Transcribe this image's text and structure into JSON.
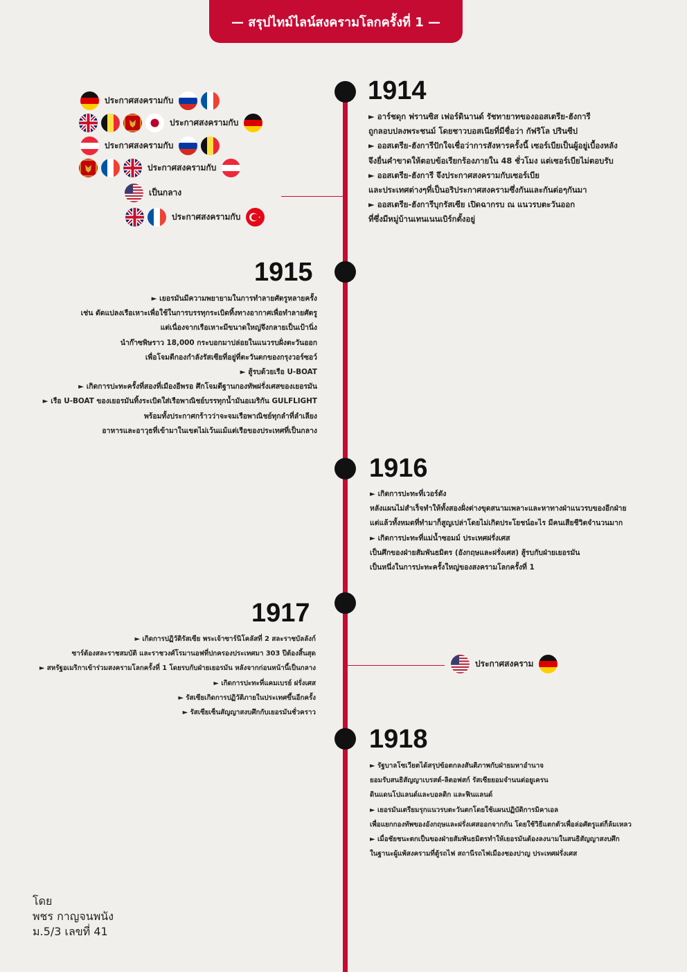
{
  "header": {
    "title": "— สรุปไทม์ไลน์สงครามโลกครั้งที่ 1 —"
  },
  "years": {
    "y1914": {
      "label": "1914",
      "lines": [
        "► อาร์ชดุก ฟรานซิส เฟอร์ดินานด์ รัชทายาทของออสเตรีย-ฮังการี",
        "ถูกลอบปลงพระชนม์ โดยชาวบอสเนียที่มีชื่อว่า กัฟริโล ปรินซีป",
        "► ออสเตรีย-ฮังการีปักใจเชื่อว่าการสังหารครั้งนี้ เซอร์เบียเป็นผู้อยู่เบื้องหลัง",
        "จึงยื่นคำขาดให้ตอบข้อเรียกร้องภายใน 48 ชั่วโมง แต่เซอร์เบียไม่ตอบรับ",
        "► ออสเตรีย-ฮังการี จึงประกาศสงครามกับเซอร์เบีย",
        "และประเทศต่างๆที่เป็นอริประกาศสงครามซึ่งกันและกันต่อๆกันมา",
        "► ออสเตรีย-ฮังการีบุกรัสเซีย เปิดฉากรบ ณ แนวรบตะวันออก",
        "ที่ซึ่งมีหมู่บ้านเทนเนนเบิร์กตั้งอยู่"
      ]
    },
    "y1915": {
      "label": "1915",
      "lines": [
        "► เยอรมันมีความพยายามในการทำลายศัตรูหลายครั้ง",
        "เช่น ดัดแปลงเรือเหาะเพื่อใช้ในการบรรทุกระเบิดทิ้งทางอากาศเพื่อทำลายศัตรู",
        "แต่เนื่องจากเรือเหาะมีขนาดใหญ่จึงกลายเป็นเป้านิ่ง",
        "นำก๊าซพิษราว 18,000 กระบอกมาปล่อยในแนวรบฝั่งตะวันออก",
        "เพื่อโจมตีกองกำลังรัสเซียที่อยู่ที่ตะวันตกของกรุงวอร์ซอว์",
        "► สู้รบด้วยเรือ U-BOAT",
        "► เกิดการปะทะครั้งที่สองที่เมืองอีพรอ ศึกโจมตีฐานกองทัพฝรั่งเศสของเยอรมัน",
        "► เรือ U-BOAT ของเยอรมันทิ้งระเบิดใส่เรือพาณิชย์บรรทุกน้ำมันอเมริกัน GULFLIGHT",
        "พร้อมทั้งประกาศกร้าวว่าจะจมเรือพาณิชย์ทุกลำที่ลำเลียง",
        "อาหารและอาวุธที่เข้ามาในเขตไม่เว้นแม้แต่เรือของประเทศที่เป็นกลาง"
      ]
    },
    "y1916": {
      "label": "1916",
      "lines": [
        "► เกิดการปะทะที่เวอร์ดัง",
        "หลังแผนไม่สำเร็จทำให้ทั้งสองฝั่งต่างขุดสนามเพลาะและหาทางฝ่าแนวรบของอีกฝ่าย",
        "แต่แล้วทั้งหมดที่ทำมาก็สูญเปล่าโดยไม่เกิดประโยชน์อะไร มีคนเสียชีวิตจำนวนมาก",
        "► เกิดการปะทะที่แม่น้ำซอมม์ ประเทศฝรั่งเศส",
        "เป็นศึกของฝ่ายสัมพันธมิตร (อังกฤษและฝรั่งเศส) สู้รบกับฝ่ายเยอรมัน",
        "เป็นหนึ่งในการปะทะครั้งใหญ่ของสงครามโลกครั้งที่ 1"
      ]
    },
    "y1917": {
      "label": "1917",
      "lines": [
        "► เกิดการปฏิวัติรัสเซีย พระเจ้าซาร์นิโคลัสที่ 2 สละราชบัลลังก์",
        "ซาร์ต้องสละราชสมบัติ และราชวงศ์โรมานอฟที่ปกครองประเทศมา 303 ปีต้องสิ้นสุด",
        "► สหรัฐอเมริกาเข้าร่วมสงครามโลกครั้งที่ 1 โดยรบกับฝ่ายเยอรมัน หลังจากก่อนหน้านี้เป็นกลาง",
        "► เกิดการปะทะที่แคมเบรย์ ฝรั่งเศส",
        "► รัสเซียเกิดการปฏิวัติภายในประเทศขึ้นอีกครั้ง",
        "► รัสเซียเซ็นสัญญาสงบศึกกับเยอรมันชั่วคราว"
      ]
    },
    "y1918": {
      "label": "1918",
      "lines": [
        "► รัฐบาลโซเวียตได้สรุปข้อตกลงสันติภาพกับฝ่ายมหาอำนาจ",
        "ยอมรับสนธิสัญญาเบรสต์-ลิตอฟสก์ รัสเซียยอมจำนนต่อยูเครน",
        "ดินแดนโปแลนด์และบอลติก และฟินแลนด์",
        "► เยอรมันเตรียมรุกแนวรบตะวันตกโดยใช้แผนปฏิบัติการมิคาเอล",
        "เพื่อแยกกองทัพของอังกฤษและฝรั่งเศสออกจากกัน โดยใช้วิธีแตกตัวเพื่อล่อศัตรูแต่ก็ล้มเหลว",
        "► เมื่อชัยชนะตกเป็นของฝ่ายสัมพันธมิตรทำให้เยอรมันต้องลงนามในสนธิสัญญาสงบศึก",
        "ในฐานะผู้แพ้สงครามที่ตู้รถไฟ สถานีรถไฟเมืองชองปาญ ประเทศฝรั่งเศส"
      ]
    }
  },
  "declarations_1914": [
    {
      "left": [
        "germany-flag"
      ],
      "text": "ประกาศสงครามกับ",
      "right": [
        "russia-flag",
        "france-flag"
      ]
    },
    {
      "left": [
        "uk-flag",
        "belgium-flag",
        "montenegro-flag",
        "japan-flag"
      ],
      "text": "ประกาศสงครามกับ",
      "right": [
        "germany-flag"
      ]
    },
    {
      "left": [
        "austria-flag"
      ],
      "text": "ประกาศสงครามกับ",
      "right": [
        "russia-flag",
        "belgium-flag"
      ]
    },
    {
      "left": [
        "montenegro-flag",
        "france-flag",
        "uk-flag"
      ],
      "text": "ประกาศสงครามกับ",
      "right": [
        "austria-flag"
      ]
    },
    {
      "left": [
        "usa-flag"
      ],
      "text": "เป็นกลาง",
      "right": []
    },
    {
      "left": [
        "uk-flag",
        "france-flag"
      ],
      "text": "ประกาศสงครามกับ",
      "right": [
        "turkey-flag"
      ]
    }
  ],
  "declaration_1917": {
    "left": [
      "usa-flag"
    ],
    "text": "ประกาศสงคราม",
    "right": [
      "germany-flag"
    ]
  },
  "author": {
    "by": "โดย",
    "name": "พชร กาญจนพนัง",
    "class_no": "ม.5/3 เลขที่ 41"
  },
  "colors": {
    "accent": "#c60b33",
    "background": "#f1efec",
    "text": "#1b1b1b"
  }
}
